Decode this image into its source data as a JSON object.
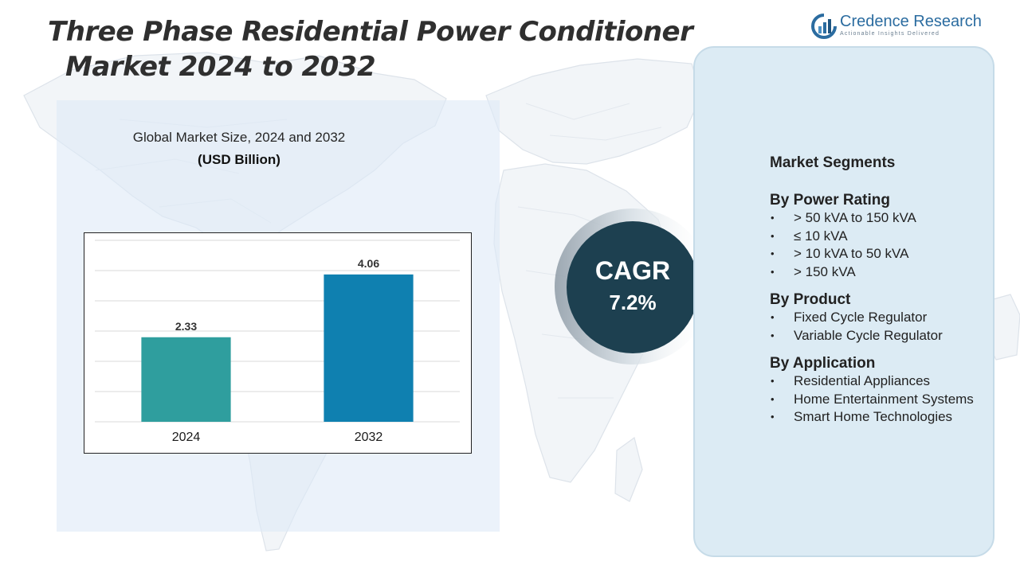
{
  "title": {
    "line1": "Three Phase Residential Power Conditioner",
    "line2": "Market 2024 to 2032"
  },
  "logo": {
    "name": "Credence Research",
    "tagline": "Actionable Insights Delivered",
    "icon": "credence-logo-icon"
  },
  "chart": {
    "subtitle": "Global Market Size, 2024 and 2032",
    "unit": "(USD Billion)"
  },
  "chart_data": {
    "type": "bar",
    "categories": [
      "2024",
      "2032"
    ],
    "values": [
      2.33,
      4.06
    ],
    "data_labels": [
      "2.33",
      "4.06"
    ],
    "title": "Global Market Size, 2024 and 2032",
    "ylabel": "(USD Billion)",
    "ylim": [
      0,
      5
    ],
    "grid": true,
    "legend": "none",
    "colors": [
      "#2f9e9e",
      "#0f80b0"
    ]
  },
  "cagr": {
    "label": "CAGR",
    "value": "7.2%"
  },
  "segments": {
    "heading": "Market Segments",
    "groups": [
      {
        "title": "By Power Rating",
        "items": [
          "> 50 kVA to 150 kVA",
          "≤ 10 kVA",
          "> 10 kVA to 50 kVA",
          "> 150 kVA"
        ]
      },
      {
        "title": "By Product",
        "items": [
          "Fixed Cycle Regulator",
          "Variable Cycle Regulator"
        ]
      },
      {
        "title": "By Application",
        "items": [
          "Residential Appliances",
          "Home Entertainment Systems",
          "Smart Home Technologies"
        ]
      }
    ]
  },
  "colors": {
    "cagr_circle": "#1d4050",
    "segment_panel": "#dcebf4",
    "chart_panel": "#e5eef7",
    "title_text": "#2f2f2f"
  }
}
